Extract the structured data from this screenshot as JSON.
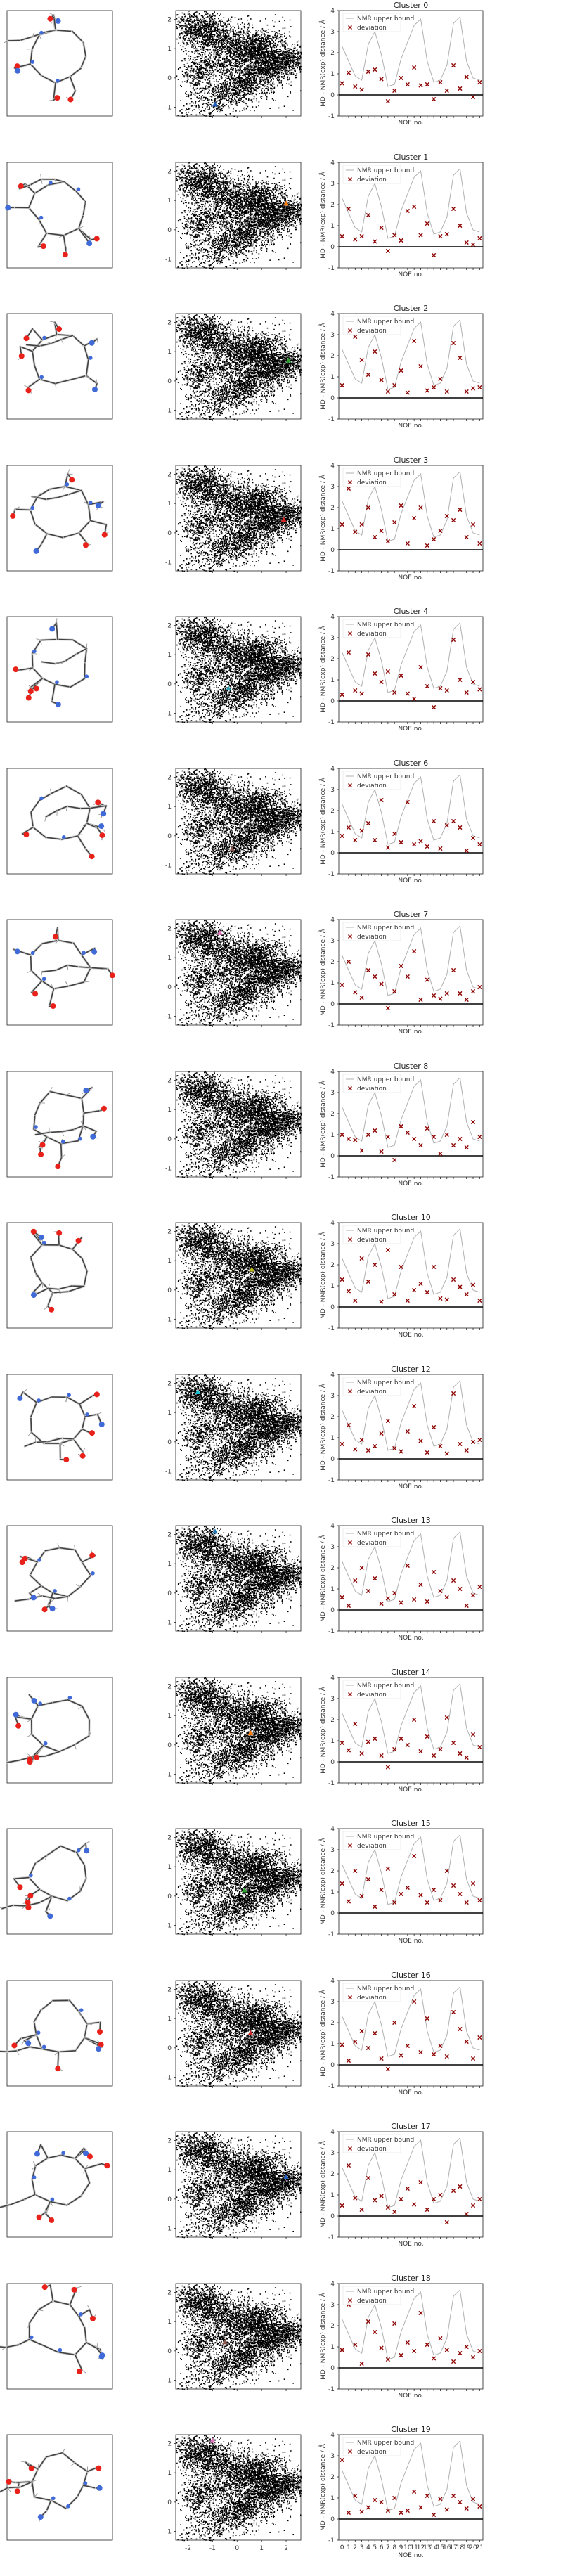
{
  "chart_data": {
    "type": "scatter",
    "clusters": [
      "0",
      "1",
      "2",
      "3",
      "4",
      "6",
      "7",
      "8",
      "10",
      "12",
      "13",
      "14",
      "15",
      "16",
      "17",
      "18",
      "19"
    ],
    "title_prefix": "Cluster ",
    "noe": {
      "ylabel": "MD - NMR(exp) distance / Å",
      "xlabel": "NOE no.",
      "legend": [
        "NMR upper bound",
        "deviation"
      ],
      "ylim": [
        -1,
        4
      ],
      "yticks": [
        -1,
        0,
        1,
        2,
        3,
        4
      ],
      "x": [
        0,
        1,
        2,
        3,
        4,
        5,
        6,
        7,
        8,
        9,
        10,
        11,
        12,
        13,
        14,
        15,
        16,
        17,
        18,
        19,
        20,
        21
      ],
      "xticklabels": [
        "0",
        "1",
        "2",
        "3",
        "4",
        "5",
        "6",
        "7",
        "8",
        "9",
        "10",
        "11",
        "12",
        "13",
        "14",
        "15",
        "16",
        "17",
        "18",
        "19",
        "20",
        "21"
      ],
      "upper_bound": [
        2.3,
        1.6,
        0.9,
        0.7,
        2.4,
        3.0,
        1.9,
        0.4,
        0.5,
        1.7,
        2.5,
        3.3,
        3.6,
        1.6,
        0.6,
        0.7,
        1.4,
        3.4,
        3.7,
        1.6,
        0.8,
        0.7
      ],
      "deviation": [
        [
          0.55,
          1.05,
          0.4,
          0.25,
          1.1,
          1.2,
          0.75,
          -0.3,
          0.2,
          0.8,
          0.5,
          1.3,
          0.45,
          0.5,
          -0.2,
          0.6,
          0.2,
          1.4,
          0.3,
          0.85,
          -0.1,
          0.6
        ],
        [
          0.5,
          1.8,
          0.35,
          0.5,
          1.5,
          0.25,
          0.9,
          -0.2,
          0.55,
          0.3,
          1.7,
          1.9,
          0.55,
          1.1,
          -0.4,
          0.5,
          0.6,
          1.8,
          1.0,
          0.2,
          0.1,
          0.4
        ],
        [
          0.6,
          3.1,
          2.9,
          1.8,
          1.1,
          2.2,
          0.85,
          0.3,
          0.6,
          1.3,
          0.25,
          2.7,
          1.5,
          0.35,
          0.5,
          0.9,
          0.3,
          2.6,
          1.9,
          0.3,
          0.45,
          0.5
        ],
        [
          1.2,
          2.9,
          0.85,
          1.2,
          2.0,
          0.6,
          0.9,
          0.4,
          1.3,
          2.1,
          0.3,
          1.5,
          2.0,
          0.2,
          0.5,
          0.9,
          1.6,
          1.4,
          1.9,
          0.6,
          1.2,
          0.3
        ],
        [
          0.3,
          2.3,
          0.5,
          0.35,
          2.2,
          1.3,
          0.9,
          1.4,
          0.4,
          1.2,
          0.35,
          0.1,
          1.6,
          0.7,
          -0.3,
          0.6,
          0.5,
          2.9,
          1.0,
          0.4,
          0.9,
          0.55
        ],
        [
          0.8,
          1.2,
          0.6,
          1.05,
          1.4,
          0.6,
          2.5,
          0.25,
          0.9,
          0.5,
          2.4,
          0.4,
          0.55,
          0.3,
          1.5,
          0.2,
          1.3,
          1.5,
          1.2,
          0.1,
          0.7,
          0.4
        ],
        [
          0.9,
          2.0,
          0.55,
          0.3,
          1.6,
          1.3,
          0.95,
          -0.2,
          0.6,
          1.8,
          1.3,
          2.5,
          0.2,
          1.15,
          0.4,
          0.25,
          0.5,
          1.6,
          0.5,
          0.2,
          0.6,
          0.8
        ],
        [
          1.0,
          0.8,
          0.75,
          0.25,
          1.0,
          1.2,
          0.2,
          0.9,
          -0.2,
          1.4,
          1.1,
          0.8,
          0.5,
          1.3,
          0.9,
          0.1,
          1.0,
          0.5,
          0.8,
          0.4,
          1.6,
          0.9
        ],
        [
          1.3,
          0.75,
          0.3,
          2.3,
          1.2,
          2.0,
          0.25,
          2.7,
          0.6,
          1.9,
          0.3,
          0.8,
          1.1,
          0.7,
          1.9,
          0.4,
          0.35,
          1.3,
          0.95,
          0.6,
          1.05,
          0.3
        ],
        [
          0.7,
          1.6,
          0.45,
          0.9,
          0.4,
          0.6,
          1.2,
          1.8,
          0.5,
          0.35,
          1.3,
          2.5,
          0.85,
          0.3,
          1.5,
          0.6,
          0.25,
          3.1,
          0.7,
          0.4,
          0.8,
          0.9
        ],
        [
          0.6,
          0.2,
          1.4,
          2.0,
          0.9,
          1.5,
          0.3,
          0.55,
          0.8,
          0.35,
          2.1,
          0.5,
          1.2,
          0.4,
          1.8,
          0.9,
          0.6,
          1.4,
          1.0,
          0.2,
          0.7,
          1.1
        ],
        [
          0.9,
          0.55,
          1.8,
          0.4,
          0.95,
          1.1,
          0.3,
          -0.25,
          0.6,
          1.1,
          0.8,
          2.0,
          0.5,
          1.2,
          0.3,
          0.6,
          2.1,
          0.9,
          0.4,
          0.2,
          1.3,
          0.7
        ],
        [
          1.4,
          0.55,
          2.0,
          0.8,
          1.6,
          0.3,
          1.1,
          2.1,
          0.5,
          0.9,
          1.2,
          2.7,
          0.85,
          0.5,
          1.1,
          0.6,
          2.0,
          1.3,
          0.9,
          0.5,
          1.4,
          0.6
        ],
        [
          0.95,
          0.2,
          1.1,
          1.6,
          0.8,
          1.5,
          0.3,
          -0.2,
          2.0,
          0.45,
          0.9,
          3.0,
          0.6,
          2.2,
          0.5,
          0.9,
          0.4,
          2.5,
          1.7,
          1.1,
          0.3,
          1.3
        ],
        [
          0.5,
          2.4,
          0.85,
          0.3,
          1.8,
          0.75,
          0.95,
          0.4,
          0.2,
          0.8,
          1.3,
          0.55,
          1.6,
          0.3,
          0.8,
          1.0,
          -0.3,
          1.2,
          1.4,
          0.1,
          0.5,
          0.8
        ],
        [
          0.85,
          3.0,
          1.1,
          0.2,
          2.2,
          1.7,
          0.95,
          0.4,
          2.1,
          0.6,
          1.2,
          0.8,
          2.6,
          1.1,
          0.45,
          1.4,
          0.85,
          0.3,
          0.7,
          1.0,
          0.5,
          0.8
        ],
        [
          2.8,
          0.3,
          1.1,
          0.35,
          0.55,
          0.9,
          0.8,
          0.4,
          1.0,
          0.3,
          0.4,
          1.3,
          0.55,
          1.1,
          0.2,
          0.95,
          0.45,
          1.1,
          0.8,
          0.5,
          0.95,
          0.6
        ]
      ]
    },
    "landscape": {
      "xlim": [
        -2.5,
        2.6
      ],
      "ylim": [
        -1.3,
        2.3
      ],
      "xticks": [
        -2,
        -1,
        0,
        1,
        2
      ],
      "yticks": [
        -1,
        0,
        1,
        2
      ],
      "markers": [
        {
          "x": -0.9,
          "y": -0.9,
          "color": "#1f5fbf"
        },
        {
          "x": 2.0,
          "y": 0.9,
          "color": "#ff7f0e"
        },
        {
          "x": 2.1,
          "y": 0.7,
          "color": "#2ca02c"
        },
        {
          "x": 1.9,
          "y": 0.45,
          "color": "#d62728"
        },
        {
          "x": -0.35,
          "y": -0.15,
          "color": "#2ca0b0"
        },
        {
          "x": -0.2,
          "y": -0.45,
          "color": "#8c564b"
        },
        {
          "x": -0.7,
          "y": 1.85,
          "color": "#e377c2"
        },
        {
          "x": -0.35,
          "y": -0.05,
          "color": "#7f7f7f"
        },
        {
          "x": 0.6,
          "y": 0.7,
          "color": "#bcbd22"
        },
        {
          "x": -1.6,
          "y": 1.7,
          "color": "#17becf"
        },
        {
          "x": -0.9,
          "y": 2.1,
          "color": "#1f77b4"
        },
        {
          "x": 0.55,
          "y": 0.4,
          "color": "#ff7f0e"
        },
        {
          "x": 0.3,
          "y": 0.2,
          "color": "#2ca02c"
        },
        {
          "x": 0.55,
          "y": 0.5,
          "color": "#d62728"
        },
        {
          "x": 2.0,
          "y": 0.75,
          "color": "#1f5fbf"
        },
        {
          "x": -0.5,
          "y": 0.3,
          "color": "#8c564b"
        },
        {
          "x": -1.0,
          "y": 2.1,
          "color": "#e377c2"
        }
      ]
    },
    "colors": {
      "deviation": "#8b0000",
      "bound": "#b0b0b0",
      "points": "#000000",
      "atom_red": "#e8221a",
      "atom_blue": "#3f6ad8",
      "bond": "#404040"
    }
  }
}
